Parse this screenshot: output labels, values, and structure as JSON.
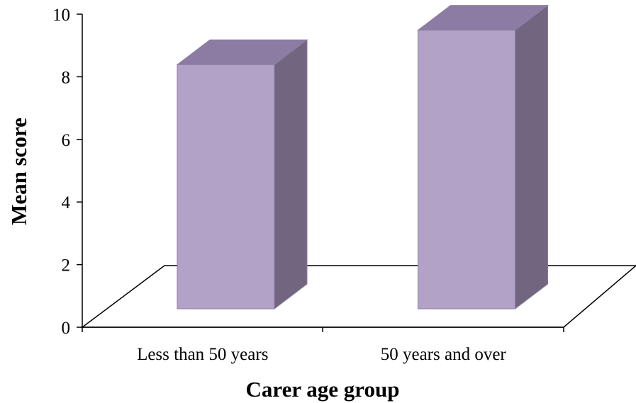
{
  "chart_data": {
    "type": "bar",
    "style": "3d",
    "categories": [
      "Less than 50 years",
      "50 years and over"
    ],
    "values": [
      7.8,
      8.9
    ],
    "ylabel": "Mean score",
    "xlabel": "Carer age group",
    "ylim": [
      0,
      10
    ],
    "yticks": [
      "0",
      "2",
      "4",
      "6",
      "8",
      "10"
    ],
    "grid": false,
    "legend": "none",
    "colors": {
      "bar_front": "#b3a2c7",
      "bar_top": "#8c7ca3",
      "bar_side": "#72657f",
      "bar_edge": "#8a7ea0",
      "axis": "#000000"
    }
  }
}
